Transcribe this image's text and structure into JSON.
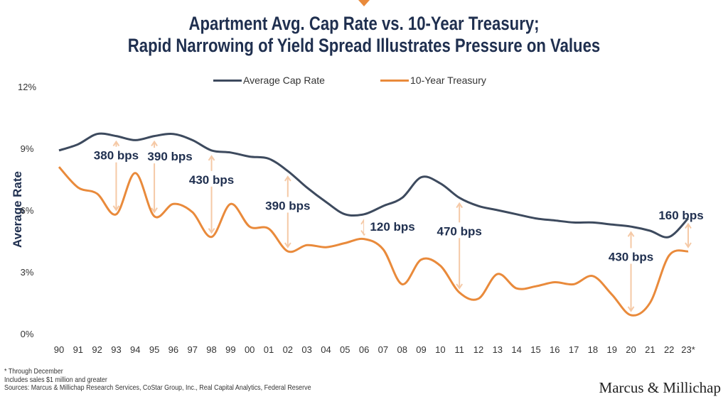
{
  "chart_data": {
    "type": "line",
    "title": "Apartment Avg. Cap Rate vs. 10-Year Treasury;",
    "subtitle": "Rapid Narrowing of Yield Spread Illustrates Pressure on Values",
    "ylabel": "Average Rate",
    "xlabel": "",
    "ylim": [
      0,
      12
    ],
    "yticks": [
      "0%",
      "3%",
      "6%",
      "9%",
      "12%"
    ],
    "ytick_values": [
      0,
      3,
      6,
      9,
      12
    ],
    "grid": false,
    "legend_position": "top",
    "categories": [
      "90",
      "91",
      "92",
      "93",
      "94",
      "95",
      "96",
      "97",
      "98",
      "99",
      "00",
      "01",
      "02",
      "03",
      "04",
      "05",
      "06",
      "07",
      "08",
      "09",
      "10",
      "11",
      "12",
      "13",
      "14",
      "15",
      "16",
      "17",
      "18",
      "19",
      "20",
      "21",
      "22",
      "23*"
    ],
    "series": [
      {
        "name": "Average Cap Rate",
        "color": "#3d4a5e",
        "values": [
          8.9,
          9.2,
          9.7,
          9.6,
          9.4,
          9.6,
          9.7,
          9.4,
          8.9,
          8.8,
          8.6,
          8.5,
          7.9,
          7.1,
          6.4,
          5.8,
          5.8,
          6.2,
          6.6,
          7.6,
          7.3,
          6.6,
          6.2,
          6.0,
          5.8,
          5.6,
          5.5,
          5.4,
          5.4,
          5.3,
          5.2,
          5.0,
          4.7,
          5.6
        ]
      },
      {
        "name": "10-Year Treasury",
        "color": "#e98a3b",
        "values": [
          8.1,
          7.1,
          6.8,
          5.8,
          7.8,
          5.7,
          6.3,
          5.9,
          4.7,
          6.3,
          5.2,
          5.1,
          4.0,
          4.3,
          4.2,
          4.4,
          4.6,
          4.1,
          2.4,
          3.6,
          3.3,
          2.0,
          1.7,
          2.9,
          2.2,
          2.3,
          2.5,
          2.4,
          2.8,
          1.9,
          0.9,
          1.5,
          3.8,
          4.0
        ]
      }
    ],
    "annotations": [
      {
        "year": "93",
        "text": "380 bps"
      },
      {
        "year": "95",
        "text": "390 bps"
      },
      {
        "year": "98",
        "text": "430 bps"
      },
      {
        "year": "02",
        "text": "390 bps"
      },
      {
        "year": "06",
        "text": "120 bps"
      },
      {
        "year": "11",
        "text": "470 bps"
      },
      {
        "year": "20",
        "text": "430 bps"
      },
      {
        "year": "23*",
        "text": "160 bps"
      }
    ],
    "arrow_color": "#f5c9a6"
  },
  "footnotes": [
    "* Through December",
    "Includes sales $1 million and greater",
    "Sources: Marcus & Millichap Research Services, CoStar Group, Inc., Real Capital Analytics, Federal Reserve"
  ],
  "logo": "Marcus & Millichap"
}
